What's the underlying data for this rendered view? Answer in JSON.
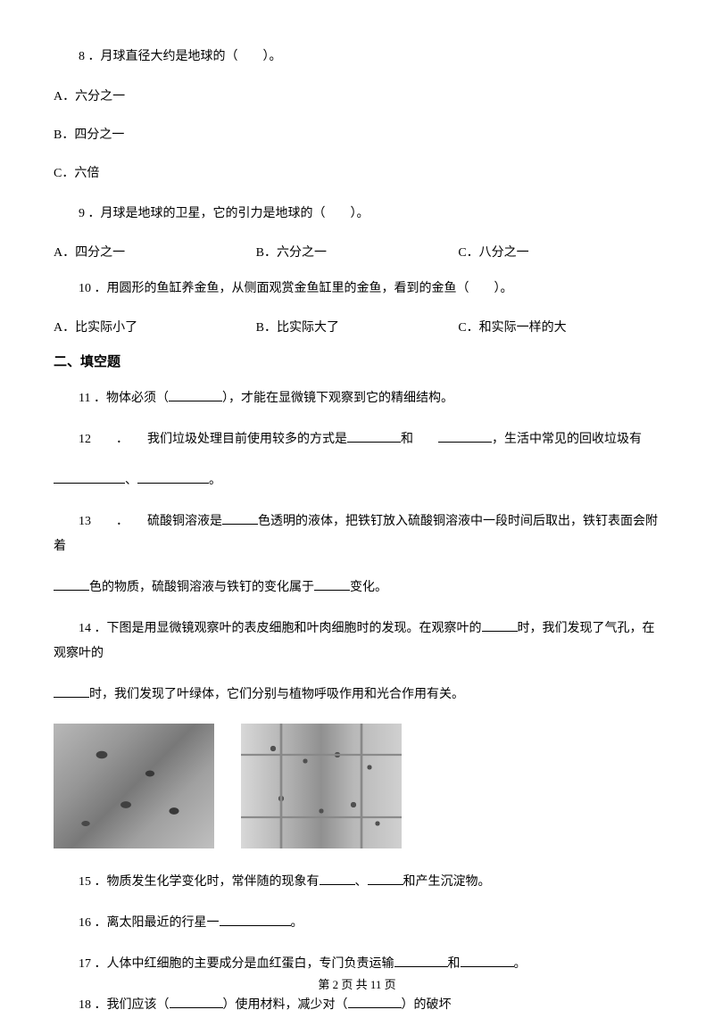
{
  "q8": {
    "text": "8 ．月球直径大约是地球的（　　）。",
    "choiceA": "A．六分之一",
    "choiceB": "B．四分之一",
    "choiceC": "C．六倍"
  },
  "q9": {
    "text": "9 ．月球是地球的卫星，它的引力是地球的（　　）。",
    "choiceA": "A．四分之一",
    "choiceB": "B．六分之一",
    "choiceC": "C．八分之一"
  },
  "q10": {
    "text": "10 ．用圆形的鱼缸养金鱼，从侧面观赏金鱼缸里的金鱼，看到的金鱼（　　）。",
    "choiceA": "A．比实际小了",
    "choiceB": "B．比实际大了",
    "choiceC": "C．和实际一样的大"
  },
  "section2": {
    "title": "二、填空题"
  },
  "q11": {
    "prefix": "11 ．物体必须（",
    "suffix": "），才能在显微镜下观察到它的精细结构。"
  },
  "q12": {
    "prefix": "12　　．　　我们垃圾处理目前使用较多的方式是",
    "mid1": "和　　",
    "mid2": "，生活中常见的回收垃圾有",
    "sep": "、",
    "end": "。"
  },
  "q13": {
    "prefix": "13　　．　　硫酸铜溶液是",
    "mid1": "色透明的液体，把铁钉放入硫酸铜溶液中一段时间后取出，铁钉表面会附着",
    "mid2": "色的物质，硫酸铜溶液与铁钉的变化属于",
    "end": "变化。"
  },
  "q14": {
    "prefix": "14 ．下图是用显微镜观察叶的表皮细胞和叶肉细胞时的发现。在观察叶的",
    "mid1": "时，我们发现了气孔，在观察叶的",
    "end": "时，我们发现了叶绿体，它们分别与植物呼吸作用和光合作用有关。"
  },
  "q15": {
    "prefix": "15 ．物质发生化学变化时，常伴随的现象有",
    "sep1": "、",
    "end": "和产生沉淀物。"
  },
  "q16": {
    "prefix": "16 ．离太阳最近的行星一",
    "end": "。"
  },
  "q17": {
    "prefix": "17 ．人体中红细胞的主要成分是血红蛋白，专门负责运输",
    "mid": "和",
    "end": "。"
  },
  "q18": {
    "prefix": "18 ．我们应该（",
    "mid": "）使用材料，减少对（",
    "end": "）的破坏"
  },
  "footer": {
    "text": "第 2 页 共 11 页"
  }
}
